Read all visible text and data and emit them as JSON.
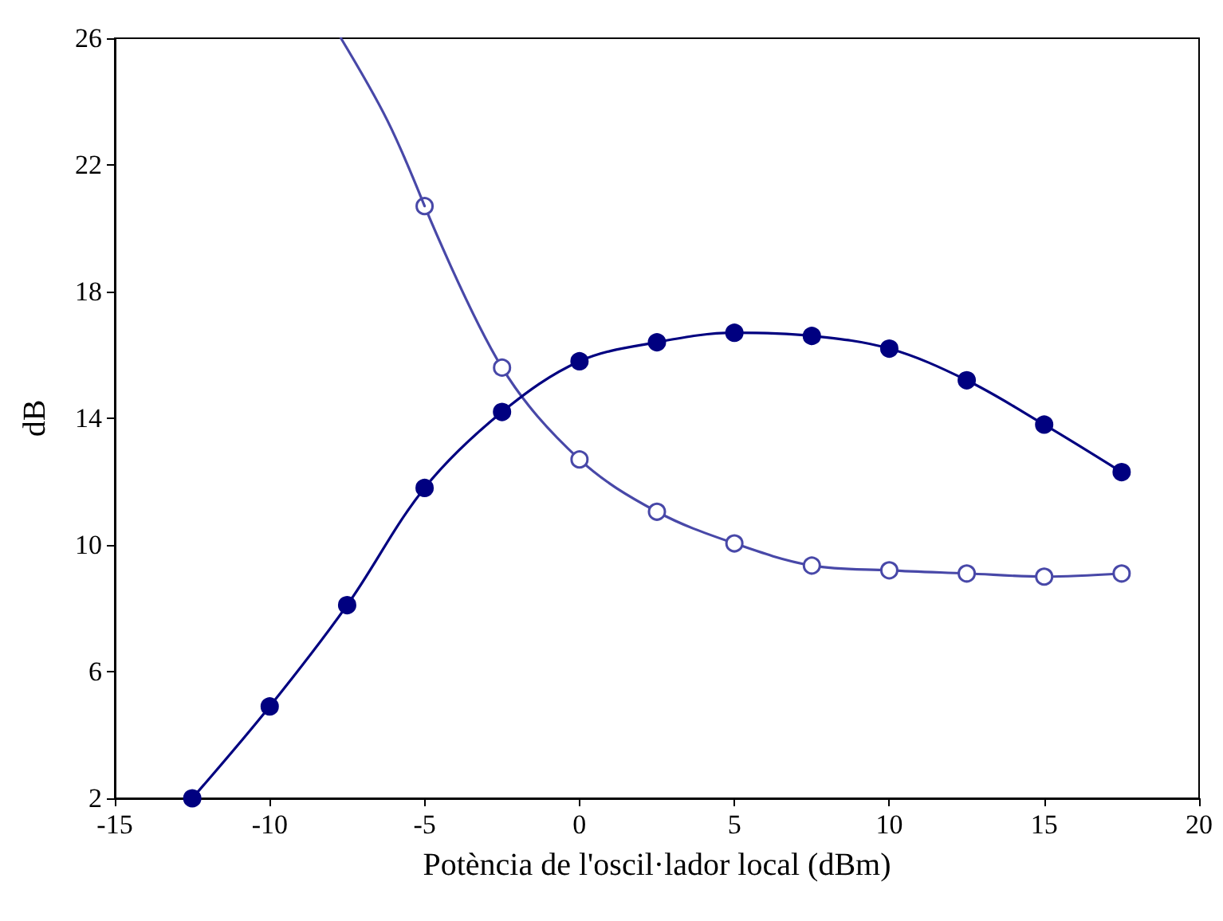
{
  "chart_data": {
    "type": "line",
    "xlabel": "Potència de l'oscil·lador local (dBm)",
    "ylabel": "dB",
    "xlim": [
      -15,
      20
    ],
    "xticks": [
      -15,
      -10,
      -5,
      0,
      5,
      10,
      15,
      20
    ],
    "ylim": [
      2,
      26
    ],
    "yticks": [
      2,
      6,
      10,
      14,
      18,
      22,
      26
    ],
    "marker": "circle",
    "series": [
      {
        "color": "#000080",
        "x": [
          -12.5,
          -10,
          -7.5,
          -5,
          -2.5,
          0,
          2.5,
          5,
          7.5,
          10,
          12.5,
          15,
          17.5
        ],
        "values": [
          2.0,
          4.9,
          8.1,
          11.8,
          14.2,
          15.8,
          16.4,
          16.7,
          16.6,
          16.2,
          15.2,
          13.8,
          12.3
        ]
      },
      {
        "color": "#4848a8",
        "marker": "open circle",
        "x": [
          -5,
          -2.5,
          0,
          2.5,
          5,
          7.5,
          10,
          12.5,
          15,
          17.5
        ],
        "values": [
          20.7,
          15.6,
          12.7,
          11.05,
          10.05,
          9.35,
          9.2,
          9.1,
          9.0,
          9.1
        ]
      },
      {
        "color": "#4848a8",
        "marker": "none",
        "x": [
          -7.7,
          -6.2,
          -5
        ],
        "values": [
          26,
          23.4,
          20.7
        ]
      }
    ]
  }
}
